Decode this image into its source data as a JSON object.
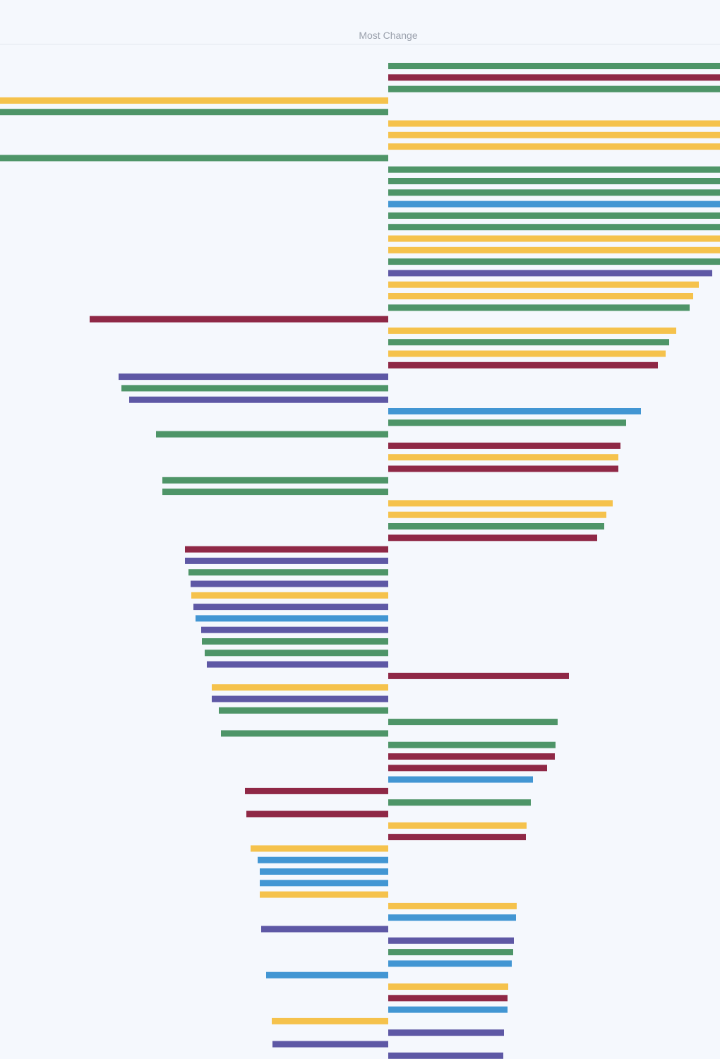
{
  "colors": {
    "green": "#4e9568",
    "crimson": "#8f2846",
    "yellow": "#f5c24c",
    "blue": "#4296d3",
    "purple": "#5e58a5",
    "background": "#f5f8fd"
  },
  "chart_data": {
    "type": "bar",
    "orientation": "horizontal",
    "title": "Most Change",
    "xlabel": "",
    "ylabel": "",
    "grid": false,
    "legend": "none",
    "xlim": [
      -550,
      470
    ],
    "bars": [
      {
        "value": 470,
        "color": "green"
      },
      {
        "value": 470,
        "color": "crimson"
      },
      {
        "value": 470,
        "color": "green"
      },
      {
        "value": -550,
        "color": "yellow"
      },
      {
        "value": -550,
        "color": "green"
      },
      {
        "value": 470,
        "color": "yellow"
      },
      {
        "value": 470,
        "color": "yellow"
      },
      {
        "value": 470,
        "color": "yellow"
      },
      {
        "value": -550,
        "color": "green"
      },
      {
        "value": 470,
        "color": "green"
      },
      {
        "value": 470,
        "color": "green"
      },
      {
        "value": 470,
        "color": "green"
      },
      {
        "value": 470,
        "color": "blue"
      },
      {
        "value": 470,
        "color": "green"
      },
      {
        "value": 470,
        "color": "green"
      },
      {
        "value": 470,
        "color": "yellow"
      },
      {
        "value": 470,
        "color": "yellow"
      },
      {
        "value": 470,
        "color": "green"
      },
      {
        "value": 459,
        "color": "purple"
      },
      {
        "value": 440,
        "color": "yellow"
      },
      {
        "value": 432,
        "color": "yellow"
      },
      {
        "value": 427,
        "color": "green"
      },
      {
        "value": -423,
        "color": "crimson"
      },
      {
        "value": 408,
        "color": "yellow"
      },
      {
        "value": 398,
        "color": "green"
      },
      {
        "value": 393,
        "color": "yellow"
      },
      {
        "value": 382,
        "color": "crimson"
      },
      {
        "value": -382,
        "color": "purple"
      },
      {
        "value": -378,
        "color": "green"
      },
      {
        "value": -367,
        "color": "purple"
      },
      {
        "value": 358,
        "color": "blue"
      },
      {
        "value": 337,
        "color": "green"
      },
      {
        "value": -329,
        "color": "green"
      },
      {
        "value": 329,
        "color": "crimson"
      },
      {
        "value": 326,
        "color": "yellow"
      },
      {
        "value": 326,
        "color": "crimson"
      },
      {
        "value": -320,
        "color": "green"
      },
      {
        "value": -320,
        "color": "green"
      },
      {
        "value": 318,
        "color": "yellow"
      },
      {
        "value": 309,
        "color": "yellow"
      },
      {
        "value": 306,
        "color": "green"
      },
      {
        "value": 296,
        "color": "crimson"
      },
      {
        "value": -288,
        "color": "crimson"
      },
      {
        "value": -288,
        "color": "purple"
      },
      {
        "value": -283,
        "color": "green"
      },
      {
        "value": -280,
        "color": "purple"
      },
      {
        "value": -279,
        "color": "yellow"
      },
      {
        "value": -276,
        "color": "purple"
      },
      {
        "value": -273,
        "color": "blue"
      },
      {
        "value": -265,
        "color": "purple"
      },
      {
        "value": -264,
        "color": "green"
      },
      {
        "value": -260,
        "color": "green"
      },
      {
        "value": -257,
        "color": "purple"
      },
      {
        "value": 256,
        "color": "crimson"
      },
      {
        "value": -250,
        "color": "yellow"
      },
      {
        "value": -250,
        "color": "purple"
      },
      {
        "value": -240,
        "color": "green"
      },
      {
        "value": 240,
        "color": "green"
      },
      {
        "value": -237,
        "color": "green"
      },
      {
        "value": 237,
        "color": "green"
      },
      {
        "value": 236,
        "color": "crimson"
      },
      {
        "value": 225,
        "color": "crimson"
      },
      {
        "value": 205,
        "color": "blue"
      },
      {
        "value": -203,
        "color": "crimson"
      },
      {
        "value": 202,
        "color": "green"
      },
      {
        "value": -201,
        "color": "crimson"
      },
      {
        "value": 196,
        "color": "yellow"
      },
      {
        "value": 195,
        "color": "crimson"
      },
      {
        "value": -195,
        "color": "yellow"
      },
      {
        "value": -185,
        "color": "blue"
      },
      {
        "value": -182,
        "color": "blue"
      },
      {
        "value": -182,
        "color": "blue"
      },
      {
        "value": -182,
        "color": "yellow"
      },
      {
        "value": 182,
        "color": "yellow"
      },
      {
        "value": 181,
        "color": "blue"
      },
      {
        "value": -180,
        "color": "purple"
      },
      {
        "value": 178,
        "color": "purple"
      },
      {
        "value": 177,
        "color": "green"
      },
      {
        "value": 175,
        "color": "blue"
      },
      {
        "value": -173,
        "color": "blue"
      },
      {
        "value": 170,
        "color": "yellow"
      },
      {
        "value": 169,
        "color": "crimson"
      },
      {
        "value": 169,
        "color": "blue"
      },
      {
        "value": -165,
        "color": "yellow"
      },
      {
        "value": 164,
        "color": "purple"
      },
      {
        "value": -164,
        "color": "purple"
      },
      {
        "value": 163,
        "color": "purple"
      }
    ]
  }
}
